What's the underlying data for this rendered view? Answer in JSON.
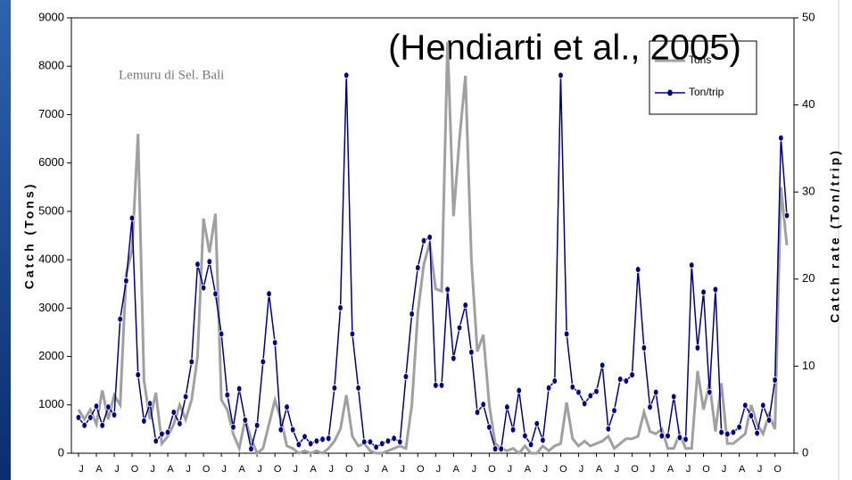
{
  "chart_data": {
    "type": "line",
    "annotations": [
      "(Hendiarti et al., 2005)",
      "Lemuru di Sel. Bali"
    ],
    "ylabel": "Catch (Tons)",
    "y2label": "Catch rate (Ton/trip)",
    "categories": [
      "J",
      null,
      null,
      "A",
      null,
      null,
      "J",
      null,
      null,
      "O",
      null,
      null,
      "J",
      null,
      null,
      "A",
      null,
      null,
      "J",
      null,
      null,
      "O",
      null,
      null,
      "J",
      null,
      null,
      "A",
      null,
      null,
      "J",
      null,
      null,
      "O",
      null,
      null,
      "J",
      null,
      null,
      "A",
      null,
      null,
      "J",
      null,
      null,
      "O",
      null,
      null,
      "J",
      null,
      null,
      "A",
      null,
      null,
      "J",
      null,
      null,
      "O",
      null,
      null,
      "J",
      null,
      null,
      "A",
      null,
      null,
      "J",
      null,
      null,
      "O",
      null,
      null,
      "J",
      null,
      null,
      "A",
      null,
      null,
      "J",
      null,
      null,
      "O",
      null,
      null,
      "J",
      null,
      null,
      "A",
      null,
      null,
      "J",
      null,
      null,
      "O",
      null,
      null,
      "J",
      null,
      null,
      "A",
      null,
      null,
      "J",
      null,
      null,
      "O",
      null,
      null,
      "J",
      null,
      null,
      "A",
      null,
      null,
      "J",
      null,
      null,
      "O",
      null,
      null
    ],
    "series": [
      {
        "name": "Tons",
        "color": "#a0a0a0",
        "axis": "y",
        "marker": false,
        "values": [
          900,
          700,
          900,
          600,
          1300,
          700,
          1200,
          1000,
          3700,
          4200,
          6600,
          1500,
          700,
          1250,
          200,
          350,
          600,
          1000,
          700,
          1100,
          2000,
          4850,
          4150,
          4950,
          1100,
          900,
          400,
          100,
          700,
          300,
          0,
          100,
          600,
          1100,
          700,
          150,
          100,
          0,
          50,
          0,
          50,
          0,
          100,
          250,
          500,
          1200,
          350,
          150,
          200,
          50,
          0,
          0,
          50,
          100,
          150,
          100,
          1000,
          2900,
          3900,
          4350,
          3400,
          3350,
          8500,
          4900,
          6500,
          7800,
          4000,
          2100,
          2450,
          1000,
          200,
          100,
          50,
          100,
          0,
          150,
          0,
          0,
          150,
          50,
          150,
          200,
          1050,
          300,
          150,
          250,
          150,
          200,
          250,
          350,
          100,
          200,
          300,
          300,
          350,
          850,
          450,
          400,
          500,
          100,
          100,
          400,
          100,
          100,
          1700,
          900,
          1450,
          450,
          1450,
          200,
          200,
          300,
          400,
          1000,
          600,
          400,
          800,
          500,
          5500,
          4300
        ]
      },
      {
        "name": "Ton/trip",
        "color": "#00007a",
        "axis": "y2",
        "marker": true,
        "values": [
          4.1,
          3.2,
          4.1,
          5.4,
          3.2,
          5.3,
          4.4,
          15.4,
          19.8,
          27.0,
          9.0,
          3.7,
          5.7,
          1.4,
          2.2,
          2.4,
          4.7,
          3.4,
          6.5,
          10.5,
          21.7,
          19.0,
          22.0,
          18.3,
          13.7,
          6.7,
          3.0,
          7.4,
          3.8,
          0.5,
          3.2,
          10.5,
          18.3,
          12.7,
          2.7,
          5.3,
          2.7,
          1.0,
          1.9,
          1.1,
          1.4,
          1.6,
          1.7,
          7.5,
          16.7,
          43.4,
          13.7,
          7.5,
          1.3,
          1.3,
          0.7,
          1.1,
          1.4,
          1.7,
          1.3,
          8.8,
          16.0,
          21.3,
          24.4,
          24.8,
          7.8,
          7.8,
          18.8,
          10.9,
          14.4,
          17.0,
          11.6,
          4.7,
          5.6,
          3.0,
          0.5,
          0.5,
          5.3,
          2.7,
          7.2,
          2.0,
          1.0,
          3.4,
          1.5,
          7.5,
          8.3,
          43.4,
          13.7,
          7.6,
          7.0,
          5.7,
          6.6,
          7.1,
          10.1,
          2.8,
          4.9,
          8.5,
          8.3,
          9.0,
          21.1,
          12.1,
          5.3,
          7.0,
          2.0,
          2.0,
          6.5,
          1.8,
          1.6,
          21.6,
          12.1,
          18.5,
          7.0,
          18.8,
          2.4,
          2.2,
          2.4,
          3.0,
          5.5,
          4.3,
          2.3,
          5.5,
          3.8,
          8.4,
          36.2,
          27.3
        ]
      }
    ],
    "ylim": [
      0,
      9000
    ],
    "yticks": [
      0,
      1000,
      2000,
      3000,
      4000,
      5000,
      6000,
      7000,
      8000,
      9000
    ],
    "y2lim": [
      0,
      50
    ],
    "y2ticks": [
      0,
      10,
      20,
      30,
      40,
      50
    ],
    "grid": false,
    "legend": "upper right"
  }
}
